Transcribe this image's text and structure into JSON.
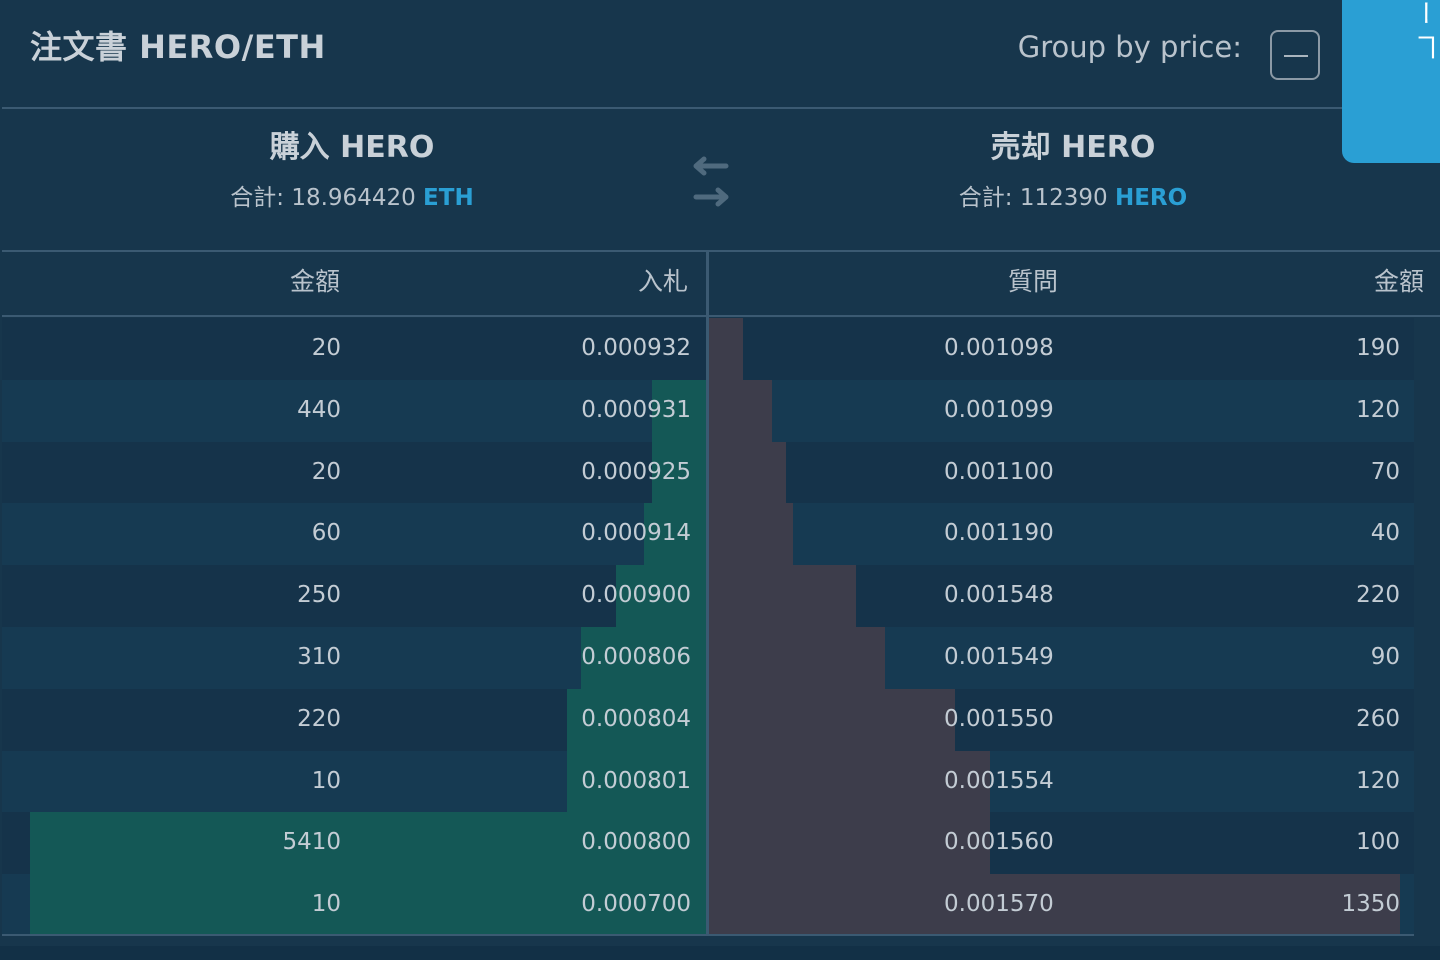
{
  "header": {
    "title": "注文書 HERO/ETH",
    "group_label": "Group by price:",
    "side_tab_text": "ー ヿ"
  },
  "buy": {
    "heading": "購入 HERO",
    "total_label": "合計:",
    "total_value": "18.964420",
    "currency": "ETH"
  },
  "sell": {
    "heading": "売却 HERO",
    "total_label": "合計:",
    "total_value": "112390",
    "currency": "HERO"
  },
  "columns": {
    "bid_amount": "金額",
    "bid_price": "入札",
    "ask_price": "質問",
    "ask_amount": "金額"
  },
  "colors": {
    "accent": "#2a9fd4",
    "bid_depth": "#145856",
    "ask_depth": "#3d3d4b",
    "background": "#17364c"
  },
  "bids": [
    {
      "amount": "20",
      "price": "0.000932",
      "depth": 0.0
    },
    {
      "amount": "440",
      "price": "0.000931",
      "depth": 0.08
    },
    {
      "amount": "20",
      "price": "0.000925",
      "depth": 0.08
    },
    {
      "amount": "60",
      "price": "0.000914",
      "depth": 0.09
    },
    {
      "amount": "250",
      "price": "0.000900",
      "depth": 0.13
    },
    {
      "amount": "310",
      "price": "0.000806",
      "depth": 0.18
    },
    {
      "amount": "220",
      "price": "0.000804",
      "depth": 0.2
    },
    {
      "amount": "10",
      "price": "0.000801",
      "depth": 0.2
    },
    {
      "amount": "5410",
      "price": "0.000800",
      "depth": 0.96
    },
    {
      "amount": "10",
      "price": "0.000700",
      "depth": 0.96
    }
  ],
  "asks": [
    {
      "price": "0.001098",
      "amount": "190",
      "depth": 0.05
    },
    {
      "price": "0.001099",
      "amount": "120",
      "depth": 0.09
    },
    {
      "price": "0.001100",
      "amount": "70",
      "depth": 0.11
    },
    {
      "price": "0.001190",
      "amount": "40",
      "depth": 0.12
    },
    {
      "price": "0.001548",
      "amount": "220",
      "depth": 0.21
    },
    {
      "price": "0.001549",
      "amount": "90",
      "depth": 0.25
    },
    {
      "price": "0.001550",
      "amount": "260",
      "depth": 0.35
    },
    {
      "price": "0.001554",
      "amount": "120",
      "depth": 0.4
    },
    {
      "price": "0.001560",
      "amount": "100",
      "depth": 0.4
    },
    {
      "price": "0.001570",
      "amount": "1350",
      "depth": 0.98
    }
  ]
}
